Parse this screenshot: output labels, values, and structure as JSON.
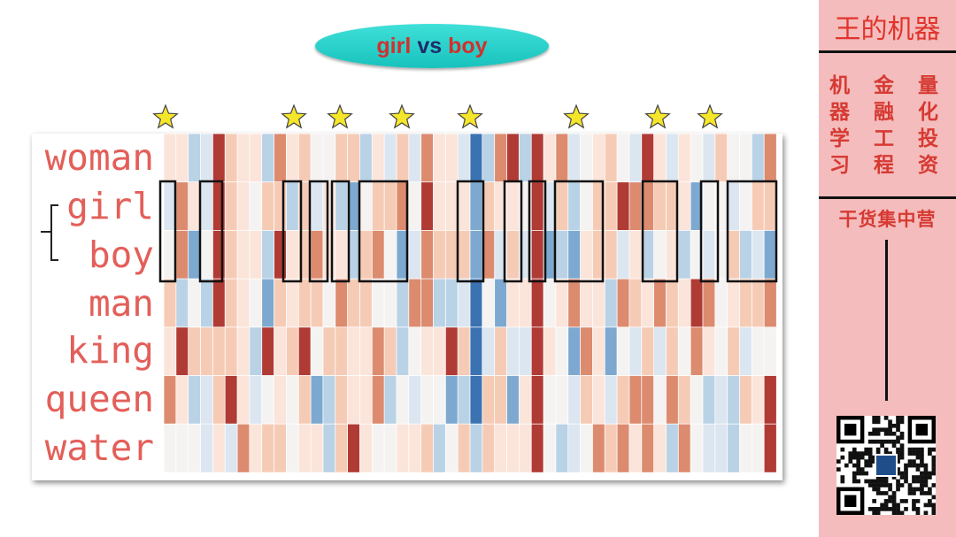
{
  "title": {
    "word_a": "girl",
    "vs": "vs",
    "word_b": "boy"
  },
  "rows": [
    "woman",
    "girl",
    "boy",
    "man",
    "king",
    "queen",
    "water"
  ],
  "sidebar": {
    "brand": "王的机器",
    "columns": [
      [
        "机",
        "器",
        "学",
        "习"
      ],
      [
        "金",
        "融",
        "工",
        "程"
      ],
      [
        "量",
        "化",
        "投",
        "资"
      ]
    ],
    "slogan": "干货集中营"
  },
  "colors": {
    "red_strong": "#b03a34",
    "red_mid": "#dc8b6f",
    "red_light": "#f6cbb5",
    "red_pale": "#fbe4da",
    "neutral": "#f5f3f2",
    "blue_pale": "#dbe6f1",
    "blue_light": "#b9d2e6",
    "blue_mid": "#7da9d0",
    "blue_strong": "#3b72b2",
    "label": "#e35f59",
    "star": "#f5e62a"
  },
  "star_icon": "star-icon"
}
